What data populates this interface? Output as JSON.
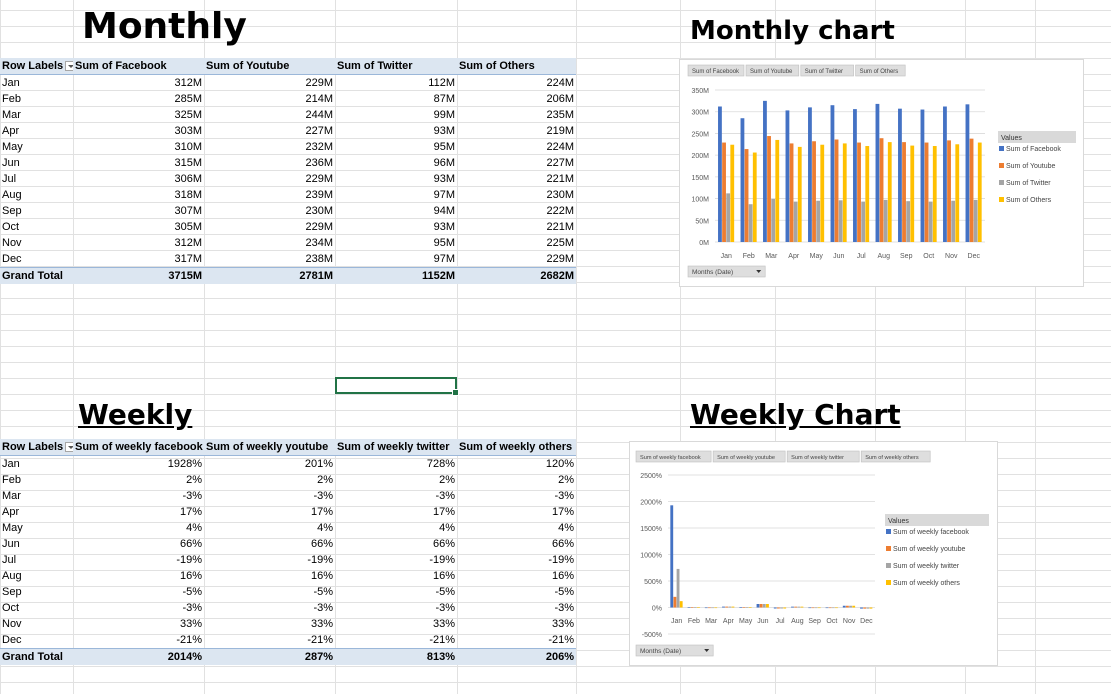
{
  "titles": {
    "monthly": "Monthly",
    "monthly_chart": "Monthly chart",
    "weekly": "Weekly",
    "weekly_chart": "Weekly Chart"
  },
  "monthly": {
    "headers": [
      "Row Labels",
      "Sum of Facebook",
      "Sum of Youtube",
      "Sum of Twitter",
      "Sum of Others"
    ],
    "rows": [
      [
        "Jan",
        "312M",
        "229M",
        "112M",
        "224M"
      ],
      [
        "Feb",
        "285M",
        "214M",
        "87M",
        "206M"
      ],
      [
        "Mar",
        "325M",
        "244M",
        "99M",
        "235M"
      ],
      [
        "Apr",
        "303M",
        "227M",
        "93M",
        "219M"
      ],
      [
        "May",
        "310M",
        "232M",
        "95M",
        "224M"
      ],
      [
        "Jun",
        "315M",
        "236M",
        "96M",
        "227M"
      ],
      [
        "Jul",
        "306M",
        "229M",
        "93M",
        "221M"
      ],
      [
        "Aug",
        "318M",
        "239M",
        "97M",
        "230M"
      ],
      [
        "Sep",
        "307M",
        "230M",
        "94M",
        "222M"
      ],
      [
        "Oct",
        "305M",
        "229M",
        "93M",
        "221M"
      ],
      [
        "Nov",
        "312M",
        "234M",
        "95M",
        "225M"
      ],
      [
        "Dec",
        "317M",
        "238M",
        "97M",
        "229M"
      ]
    ],
    "total": [
      "Grand Total",
      "3715M",
      "2781M",
      "1152M",
      "2682M"
    ]
  },
  "weekly": {
    "headers": [
      "Row Labels",
      "Sum of weekly facebook",
      "Sum of weekly youtube",
      "Sum of weekly twitter",
      "Sum of weekly others"
    ],
    "rows": [
      [
        "Jan",
        "1928%",
        "201%",
        "728%",
        "120%"
      ],
      [
        "Feb",
        "2%",
        "2%",
        "2%",
        "2%"
      ],
      [
        "Mar",
        "-3%",
        "-3%",
        "-3%",
        "-3%"
      ],
      [
        "Apr",
        "17%",
        "17%",
        "17%",
        "17%"
      ],
      [
        "May",
        "4%",
        "4%",
        "4%",
        "4%"
      ],
      [
        "Jun",
        "66%",
        "66%",
        "66%",
        "66%"
      ],
      [
        "Jul",
        "-19%",
        "-19%",
        "-19%",
        "-19%"
      ],
      [
        "Aug",
        "16%",
        "16%",
        "16%",
        "16%"
      ],
      [
        "Sep",
        "-5%",
        "-5%",
        "-5%",
        "-5%"
      ],
      [
        "Oct",
        "-3%",
        "-3%",
        "-3%",
        "-3%"
      ],
      [
        "Nov",
        "33%",
        "33%",
        "33%",
        "33%"
      ],
      [
        "Dec",
        "-21%",
        "-21%",
        "-21%",
        "-21%"
      ]
    ],
    "total": [
      "Grand Total",
      "2014%",
      "287%",
      "813%",
      "206%"
    ]
  },
  "chart_data": [
    {
      "type": "bar",
      "categories": [
        "Jan",
        "Feb",
        "Mar",
        "Apr",
        "May",
        "Jun",
        "Jul",
        "Aug",
        "Sep",
        "Oct",
        "Nov",
        "Dec"
      ],
      "series": [
        {
          "name": "Sum of Facebook",
          "color": "#4472c4",
          "values": [
            312,
            285,
            325,
            303,
            310,
            315,
            306,
            318,
            307,
            305,
            312,
            317
          ]
        },
        {
          "name": "Sum of Youtube",
          "color": "#ed7d31",
          "values": [
            229,
            214,
            244,
            227,
            232,
            236,
            229,
            239,
            230,
            229,
            234,
            238
          ]
        },
        {
          "name": "Sum of Twitter",
          "color": "#a5a5a5",
          "values": [
            112,
            87,
            99,
            93,
            95,
            96,
            93,
            97,
            94,
            93,
            95,
            97
          ]
        },
        {
          "name": "Sum of Others",
          "color": "#ffc000",
          "values": [
            224,
            206,
            235,
            219,
            224,
            227,
            221,
            230,
            222,
            221,
            225,
            229
          ]
        }
      ],
      "yticks": [
        "0M",
        "50M",
        "100M",
        "150M",
        "200M",
        "250M",
        "300M",
        "350M"
      ],
      "ylim": [
        0,
        350
      ],
      "legend_title": "Values",
      "legend_position": "right",
      "filter_button": "Months (Date)",
      "grid": true
    },
    {
      "type": "bar",
      "categories": [
        "Jan",
        "Feb",
        "Mar",
        "Apr",
        "May",
        "Jun",
        "Jul",
        "Aug",
        "Sep",
        "Oct",
        "Nov",
        "Dec"
      ],
      "series": [
        {
          "name": "Sum of weekly facebook",
          "color": "#4472c4",
          "values": [
            1928,
            2,
            -3,
            17,
            4,
            66,
            -19,
            16,
            -5,
            -3,
            33,
            -21
          ]
        },
        {
          "name": "Sum of weekly youtube",
          "color": "#ed7d31",
          "values": [
            201,
            2,
            -3,
            17,
            4,
            66,
            -19,
            16,
            -5,
            -3,
            33,
            -21
          ]
        },
        {
          "name": "Sum of weekly twitter",
          "color": "#a5a5a5",
          "values": [
            728,
            2,
            -3,
            17,
            4,
            66,
            -19,
            16,
            -5,
            -3,
            33,
            -21
          ]
        },
        {
          "name": "Sum of weekly others",
          "color": "#ffc000",
          "values": [
            120,
            2,
            -3,
            17,
            4,
            66,
            -19,
            16,
            -5,
            -3,
            33,
            -21
          ]
        }
      ],
      "yticks": [
        "-500%",
        "0%",
        "500%",
        "1000%",
        "1500%",
        "2000%",
        "2500%"
      ],
      "ylim": [
        -500,
        2500
      ],
      "legend_title": "Values",
      "legend_position": "right",
      "filter_button": "Months (Date)",
      "grid": true
    }
  ]
}
